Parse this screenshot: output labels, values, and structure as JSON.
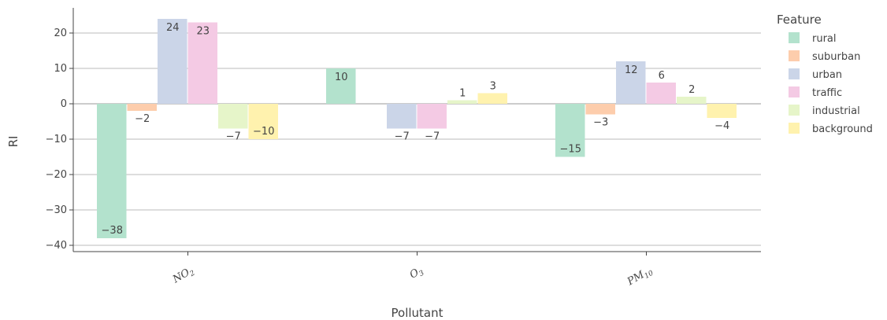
{
  "chart_data": {
    "type": "bar",
    "categories": [
      "NO2",
      "O3",
      "PM10"
    ],
    "categories_display": [
      {
        "main": "NO",
        "sub": "2"
      },
      {
        "main": "O",
        "sub": "3"
      },
      {
        "main": "PM",
        "sub": "10"
      }
    ],
    "series": [
      {
        "name": "rural",
        "values": [
          -38,
          10,
          -15
        ],
        "color": "#b3e2cd"
      },
      {
        "name": "suburban",
        "values": [
          -2,
          null,
          -3
        ],
        "color": "#fdcdac"
      },
      {
        "name": "urban",
        "values": [
          24,
          -7,
          12
        ],
        "color": "#cbd5e8"
      },
      {
        "name": "traffic",
        "values": [
          23,
          -7,
          6
        ],
        "color": "#f4cae4"
      },
      {
        "name": "industrial",
        "values": [
          -7,
          1,
          2
        ],
        "color": "#e6f5c9"
      },
      {
        "name": "background",
        "values": [
          -10,
          3,
          -4
        ],
        "color": "#fff2ae"
      }
    ],
    "xlabel": "Pollutant",
    "ylabel": "RI",
    "ylim": [
      -41,
      27
    ],
    "yticks": [
      20,
      10,
      0,
      -10,
      -20,
      -30,
      -40
    ],
    "ytick_labels": [
      "20",
      "10",
      "0",
      "−10",
      "−20",
      "−30",
      "−40"
    ],
    "legend_title": "Feature",
    "legend_position": "right",
    "grid": true
  }
}
